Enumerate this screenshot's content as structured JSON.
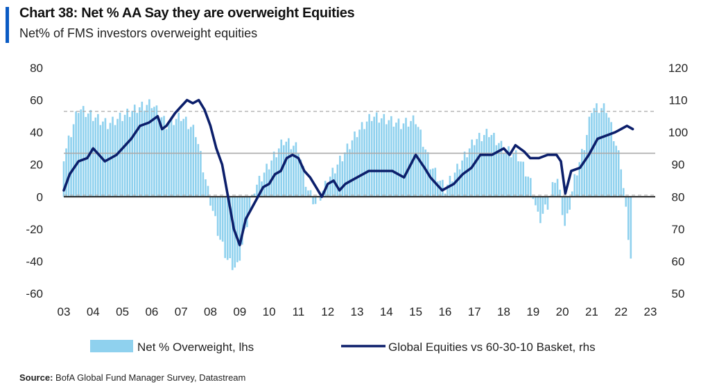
{
  "header": {
    "title": "Chart 38: Net % AA Say they are overweight Equities",
    "subtitle": "Net% of FMS investors overweight equities"
  },
  "footer": {
    "source_label": "Source:",
    "source_text": "BofA Global Fund Manager Survey, Datastream"
  },
  "chart_data": {
    "type": "bar",
    "title": "Chart 38: Net % AA Say they are overweight Equities",
    "subtitle": "Net% of FMS investors overweight equities",
    "colors": {
      "bars": "#8fd1ee",
      "line": "#0c1f6b",
      "zero_line": "#222222",
      "ref_dashed": "#aaaaaa",
      "ref_solid": "#aaaaaa"
    },
    "x_axis": {
      "ticks": [
        "03",
        "04",
        "05",
        "06",
        "07",
        "08",
        "09",
        "10",
        "11",
        "12",
        "13",
        "14",
        "15",
        "16",
        "17",
        "18",
        "19",
        "20",
        "21",
        "22",
        "23"
      ],
      "range": [
        2003,
        2023
      ]
    },
    "y_axis_left": {
      "range": [
        -60,
        80
      ],
      "ticks": [
        80,
        60,
        40,
        20,
        0,
        -20,
        -40,
        -60
      ]
    },
    "y_axis_right": {
      "range": [
        50,
        120
      ],
      "ticks": [
        120,
        110,
        100,
        90,
        80,
        70,
        60,
        50
      ]
    },
    "reference_lines_lhs": [
      {
        "value": 53,
        "style": "dashed"
      },
      {
        "value": 27,
        "style": "solid"
      },
      {
        "value": 1,
        "style": "dashed"
      }
    ],
    "legend_position": "bottom",
    "series": [
      {
        "name": "Net % Overweight, lhs",
        "type": "bar",
        "axis": "left",
        "x": [
          2003.0,
          2003.5,
          2004.0,
          2004.5,
          2005.0,
          2005.5,
          2006.0,
          2006.5,
          2007.0,
          2007.5,
          2007.9,
          2008.3,
          2008.6,
          2008.9,
          2009.2,
          2009.5,
          2010.0,
          2010.5,
          2011.0,
          2011.3,
          2011.6,
          2012.0,
          2012.5,
          2013.0,
          2013.5,
          2014.0,
          2014.5,
          2015.0,
          2015.5,
          2016.0,
          2016.5,
          2017.0,
          2017.5,
          2018.0,
          2018.5,
          2018.9,
          2019.2,
          2019.5,
          2019.8,
          2020.1,
          2020.4,
          2020.8,
          2021.0,
          2021.5,
          2022.0,
          2022.2,
          2022.4
        ],
        "values": [
          25,
          55,
          50,
          45,
          50,
          55,
          58,
          45,
          50,
          40,
          5,
          -25,
          -40,
          -45,
          -20,
          5,
          20,
          35,
          30,
          5,
          -5,
          10,
          25,
          40,
          50,
          48,
          45,
          48,
          20,
          5,
          20,
          35,
          40,
          30,
          25,
          10,
          -15,
          -5,
          15,
          -20,
          10,
          35,
          55,
          55,
          20,
          -15,
          -50
        ]
      },
      {
        "name": "Global Equities vs 60-30-10 Basket, rhs",
        "type": "line",
        "axis": "right",
        "x": [
          2003.0,
          2003.2,
          2003.5,
          2003.8,
          2004.0,
          2004.2,
          2004.4,
          2004.6,
          2004.8,
          2005.0,
          2005.3,
          2005.6,
          2005.9,
          2006.2,
          2006.35,
          2006.5,
          2006.8,
          2007.0,
          2007.2,
          2007.4,
          2007.6,
          2007.8,
          2008.0,
          2008.2,
          2008.4,
          2008.6,
          2008.8,
          2009.0,
          2009.2,
          2009.5,
          2009.8,
          2010.0,
          2010.2,
          2010.4,
          2010.6,
          2010.8,
          2011.0,
          2011.2,
          2011.4,
          2011.6,
          2011.8,
          2012.0,
          2012.2,
          2012.4,
          2012.6,
          2012.8,
          2013.0,
          2013.4,
          2013.8,
          2014.2,
          2014.6,
          2015.0,
          2015.3,
          2015.5,
          2015.7,
          2015.9,
          2016.1,
          2016.3,
          2016.6,
          2016.9,
          2017.2,
          2017.6,
          2018.0,
          2018.2,
          2018.4,
          2018.7,
          2018.9,
          2019.2,
          2019.5,
          2019.8,
          2019.95,
          2020.1,
          2020.3,
          2020.6,
          2020.9,
          2021.2,
          2021.5,
          2021.8,
          2022.0,
          2022.2,
          2022.4
        ],
        "values": [
          82,
          87,
          91,
          92,
          95,
          93,
          91,
          92,
          93,
          95,
          98,
          102,
          103,
          105,
          101,
          102,
          106,
          108,
          110,
          109,
          110,
          107,
          102,
          95,
          90,
          80,
          70,
          65,
          73,
          78,
          83,
          84,
          87,
          88,
          92,
          93,
          92,
          88,
          86,
          83,
          80,
          84,
          85,
          82,
          84,
          85,
          86,
          88,
          88,
          88,
          86,
          93,
          89,
          86,
          84,
          82,
          83,
          84,
          87,
          89,
          93,
          93,
          95,
          93,
          96,
          94,
          92,
          92,
          93,
          93,
          91,
          81,
          88,
          89,
          93,
          98,
          99,
          100,
          101,
          102,
          101
        ]
      }
    ]
  }
}
